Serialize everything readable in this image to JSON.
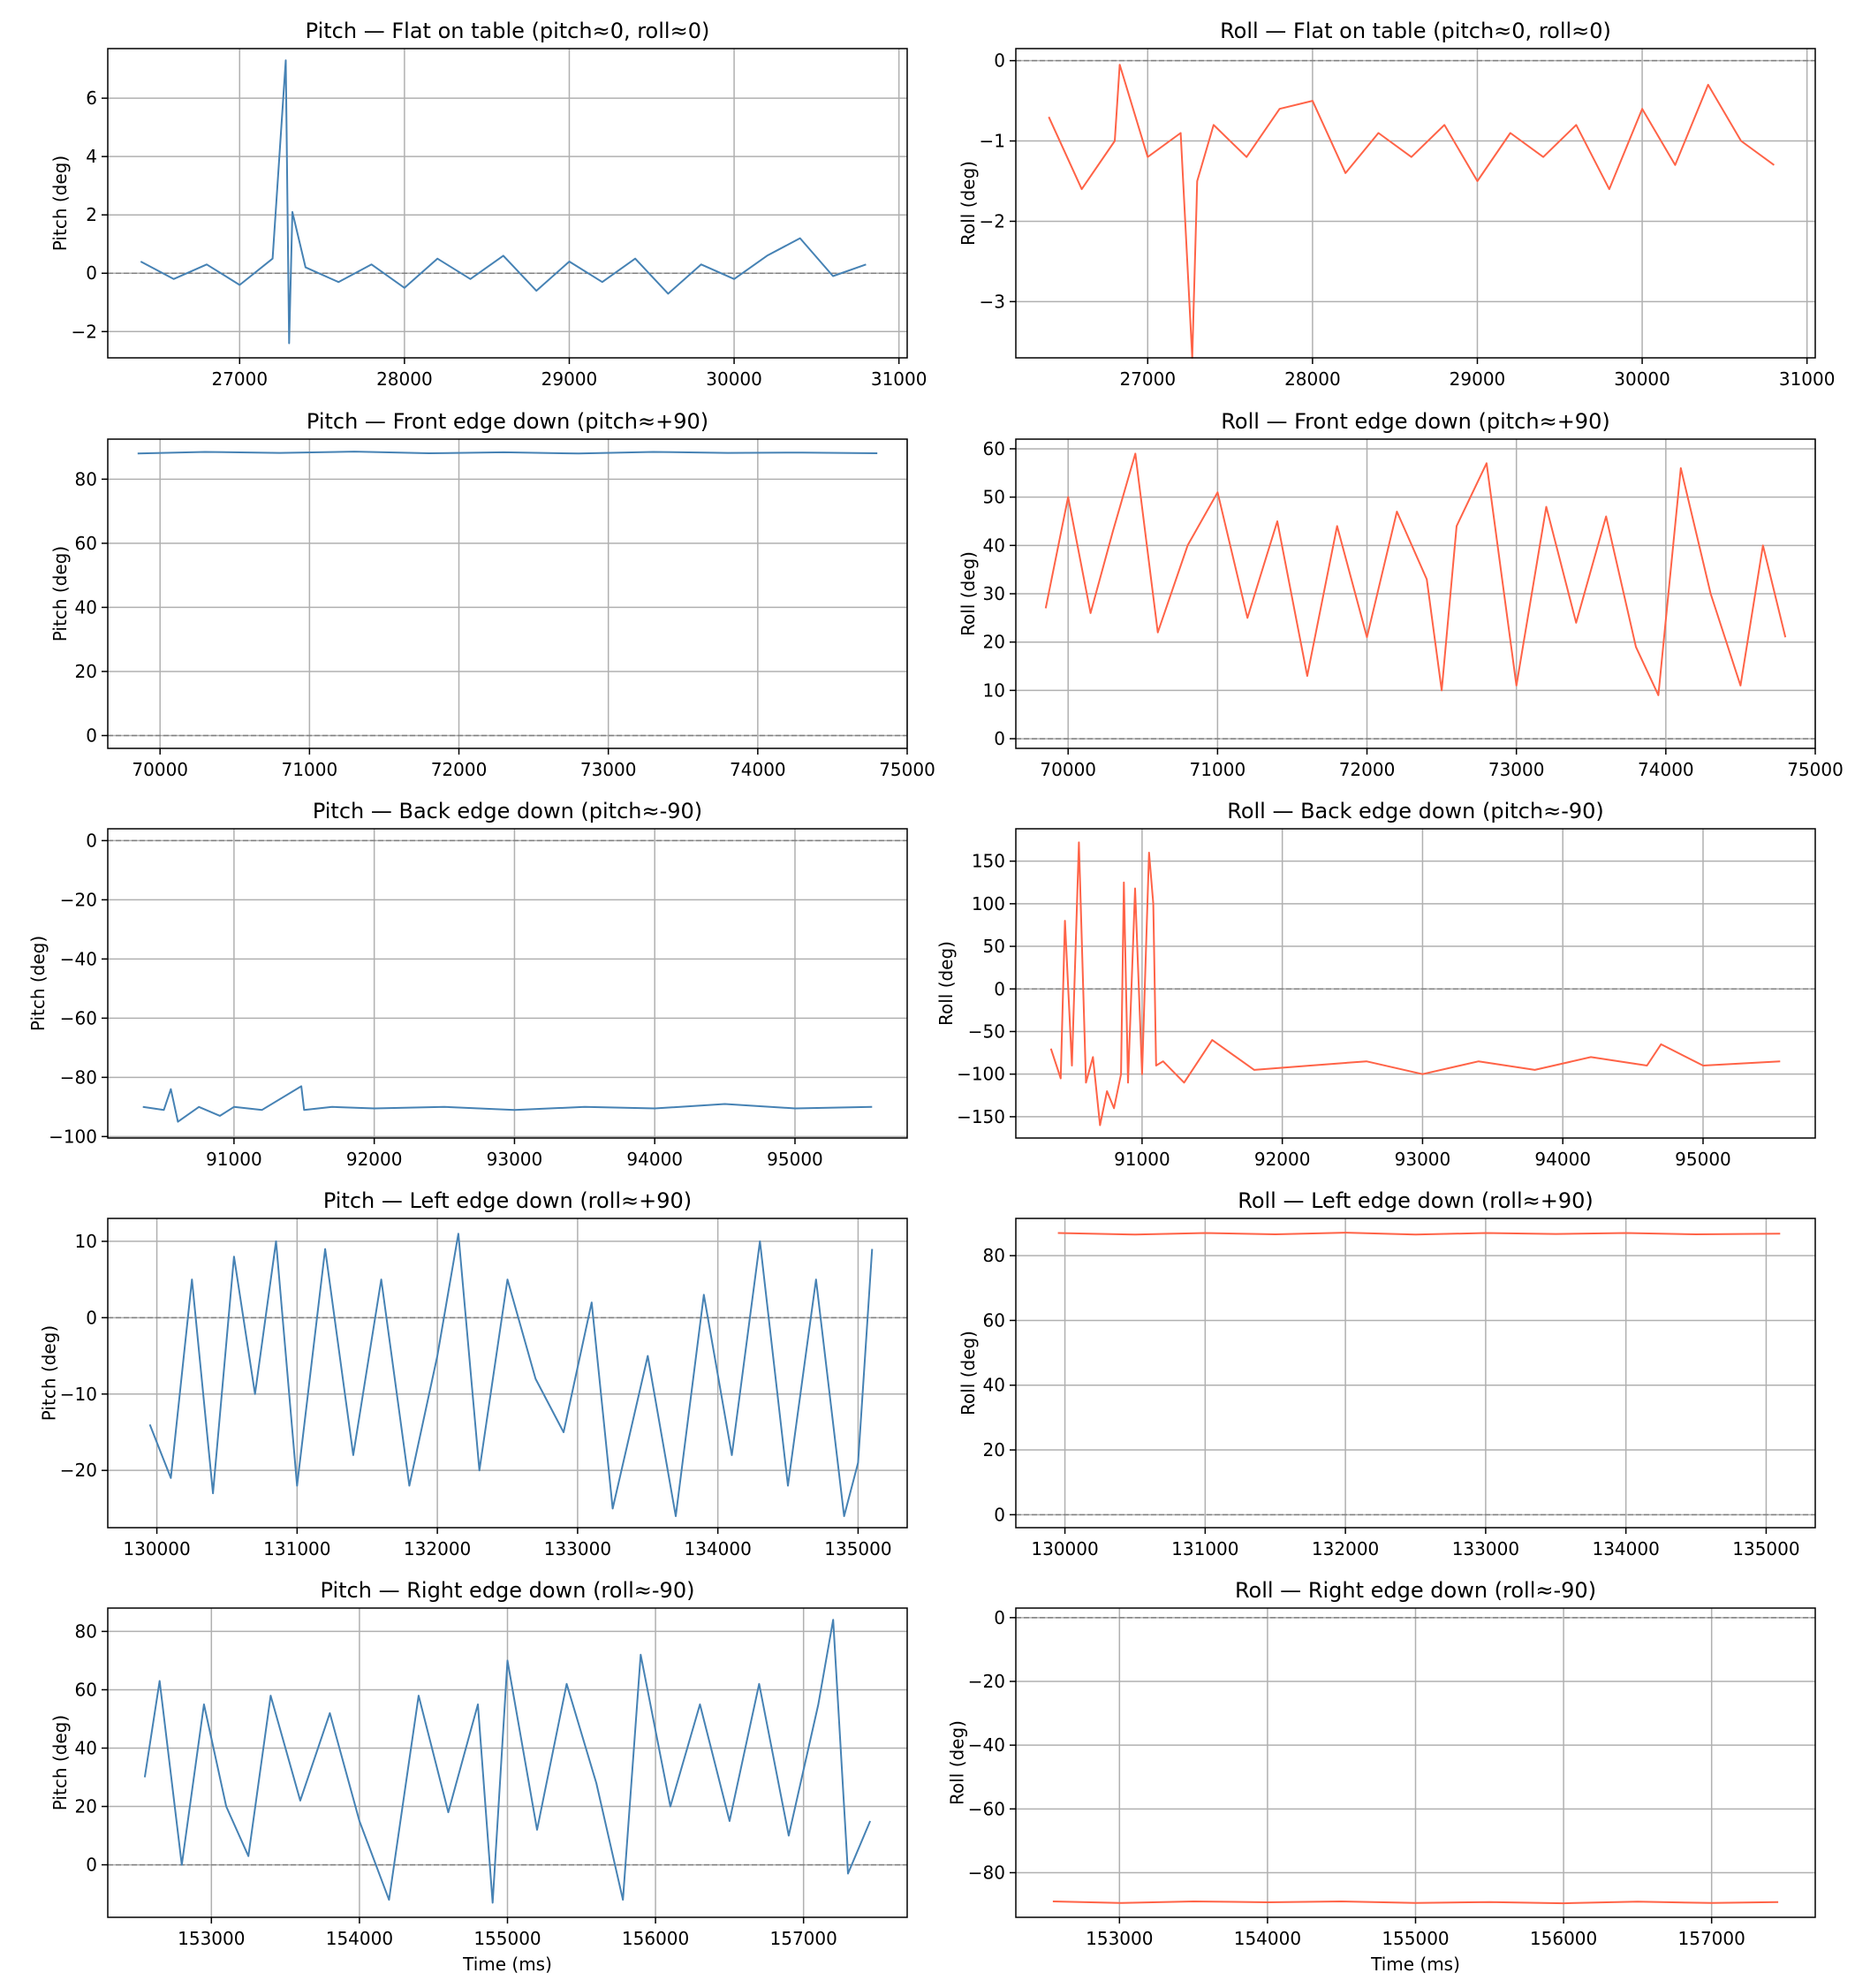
{
  "colors": {
    "pitch": "#4682b4",
    "roll": "#ff6347",
    "grid": "#b0b0b0",
    "zero_line": "#808080"
  },
  "chart_data": [
    {
      "type": "line",
      "title": "Pitch — Flat on table (pitch≈0, roll≈0)",
      "xlabel": "",
      "ylabel": "Pitch (deg)",
      "color": "pitch",
      "xlim": [
        26200,
        31050
      ],
      "ylim": [
        -2.9,
        7.7
      ],
      "xticks": [
        27000,
        28000,
        29000,
        30000,
        31000
      ],
      "yticks": [
        -2,
        0,
        2,
        4,
        6
      ],
      "grid": true,
      "zero_line": true,
      "x": [
        26400,
        26600,
        26800,
        27000,
        27200,
        27280,
        27300,
        27320,
        27400,
        27600,
        27800,
        28000,
        28200,
        28400,
        28600,
        28800,
        29000,
        29200,
        29400,
        29600,
        29800,
        30000,
        30200,
        30400,
        30600,
        30800
      ],
      "y": [
        0.4,
        -0.2,
        0.3,
        -0.4,
        0.5,
        7.3,
        -2.4,
        2.1,
        0.2,
        -0.3,
        0.3,
        -0.5,
        0.5,
        -0.2,
        0.6,
        -0.6,
        0.4,
        -0.3,
        0.5,
        -0.7,
        0.3,
        -0.2,
        0.6,
        1.2,
        -0.1,
        0.3
      ]
    },
    {
      "type": "line",
      "title": "Roll — Flat on table (pitch≈0, roll≈0)",
      "xlabel": "",
      "ylabel": "Roll (deg)",
      "color": "roll",
      "xlim": [
        26200,
        31050
      ],
      "ylim": [
        -3.7,
        0.15
      ],
      "xticks": [
        27000,
        28000,
        29000,
        30000,
        31000
      ],
      "yticks": [
        -3,
        -2,
        -1,
        0
      ],
      "grid": true,
      "zero_line": true,
      "x": [
        26400,
        26600,
        26800,
        26830,
        27000,
        27200,
        27270,
        27300,
        27400,
        27600,
        27800,
        28000,
        28200,
        28400,
        28600,
        28800,
        29000,
        29200,
        29400,
        29600,
        29800,
        30000,
        30200,
        30400,
        30600,
        30800
      ],
      "y": [
        -0.7,
        -1.6,
        -1.0,
        -0.05,
        -1.2,
        -0.9,
        -3.7,
        -1.5,
        -0.8,
        -1.2,
        -0.6,
        -0.5,
        -1.4,
        -0.9,
        -1.2,
        -0.8,
        -1.5,
        -0.9,
        -1.2,
        -0.8,
        -1.6,
        -0.6,
        -1.3,
        -0.3,
        -1.0,
        -1.3
      ]
    },
    {
      "type": "line",
      "title": "Pitch — Front edge down (pitch≈+90)",
      "xlabel": "",
      "ylabel": "Pitch (deg)",
      "color": "pitch",
      "xlim": [
        69650,
        75000
      ],
      "ylim": [
        -4,
        92.5
      ],
      "xticks": [
        70000,
        71000,
        72000,
        73000,
        74000,
        75000
      ],
      "yticks": [
        0,
        20,
        40,
        60,
        80
      ],
      "grid": true,
      "zero_line": true,
      "x": [
        69850,
        70300,
        70800,
        71300,
        71800,
        72300,
        72800,
        73300,
        73800,
        74300,
        74800
      ],
      "y": [
        88,
        88.5,
        88.2,
        88.6,
        88.1,
        88.4,
        88,
        88.5,
        88.2,
        88.3,
        88.1
      ]
    },
    {
      "type": "line",
      "title": "Roll — Front edge down (pitch≈+90)",
      "xlabel": "",
      "ylabel": "Roll (deg)",
      "color": "roll",
      "xlim": [
        69650,
        75000
      ],
      "ylim": [
        -2,
        62
      ],
      "xticks": [
        70000,
        71000,
        72000,
        73000,
        74000,
        75000
      ],
      "yticks": [
        0,
        10,
        20,
        30,
        40,
        50,
        60
      ],
      "grid": true,
      "zero_line": true,
      "x": [
        69850,
        70000,
        70150,
        70300,
        70450,
        70600,
        70800,
        71000,
        71200,
        71400,
        71600,
        71800,
        72000,
        72200,
        72400,
        72500,
        72600,
        72800,
        73000,
        73200,
        73400,
        73600,
        73800,
        73950,
        74100,
        74300,
        74500,
        74650,
        74800
      ],
      "y": [
        27,
        50,
        26,
        43,
        59,
        22,
        40,
        51,
        25,
        45,
        13,
        44,
        21,
        47,
        33,
        10,
        44,
        57,
        11,
        48,
        24,
        46,
        19,
        9,
        56,
        30,
        11,
        40,
        21
      ]
    },
    {
      "type": "line",
      "title": "Pitch — Back edge down (pitch≈-90)",
      "xlabel": "",
      "ylabel": "Pitch (deg)",
      "color": "pitch",
      "xlim": [
        90100,
        95800
      ],
      "ylim": [
        -100.5,
        4
      ],
      "xticks": [
        91000,
        92000,
        93000,
        94000,
        95000
      ],
      "yticks": [
        -100,
        -80,
        -60,
        -40,
        -20,
        0
      ],
      "grid": true,
      "zero_line": true,
      "x": [
        90350,
        90500,
        90550,
        90600,
        90750,
        90900,
        91000,
        91200,
        91480,
        91500,
        91700,
        92000,
        92500,
        93000,
        93500,
        94000,
        94500,
        95000,
        95550
      ],
      "y": [
        -90,
        -91,
        -84,
        -95,
        -90,
        -93,
        -90,
        -91,
        -83,
        -91,
        -90,
        -90.5,
        -90,
        -91,
        -90,
        -90.5,
        -89,
        -90.5,
        -90
      ]
    },
    {
      "type": "line",
      "title": "Roll — Back edge down (pitch≈-90)",
      "xlabel": "",
      "ylabel": "Roll (deg)",
      "color": "roll",
      "xlim": [
        90100,
        95800
      ],
      "ylim": [
        -175,
        188
      ],
      "xticks": [
        91000,
        92000,
        93000,
        94000,
        95000
      ],
      "yticks": [
        -150,
        -100,
        -50,
        0,
        50,
        100,
        150
      ],
      "grid": true,
      "zero_line": true,
      "x": [
        90350,
        90420,
        90450,
        90500,
        90550,
        90600,
        90650,
        90700,
        90750,
        90800,
        90850,
        90870,
        90900,
        90950,
        91000,
        91050,
        91080,
        91100,
        91150,
        91300,
        91500,
        91800,
        92200,
        92600,
        93000,
        93400,
        93800,
        94200,
        94600,
        94700,
        95000,
        95550
      ],
      "y": [
        -70,
        -105,
        80,
        -90,
        172,
        -110,
        -80,
        -160,
        -120,
        -140,
        -100,
        125,
        -110,
        118,
        -100,
        160,
        100,
        -90,
        -85,
        -110,
        -60,
        -95,
        -90,
        -85,
        -100,
        -85,
        -95,
        -80,
        -90,
        -65,
        -90,
        -85
      ]
    },
    {
      "type": "line",
      "title": "Pitch — Left edge down (roll≈+90)",
      "xlabel": "",
      "ylabel": "Pitch (deg)",
      "color": "pitch",
      "xlim": [
        129650,
        135350
      ],
      "ylim": [
        -27.5,
        13
      ],
      "xticks": [
        130000,
        131000,
        132000,
        133000,
        134000,
        135000
      ],
      "yticks": [
        -20,
        -10,
        0,
        10
      ],
      "grid": true,
      "zero_line": true,
      "x": [
        129950,
        130100,
        130250,
        130400,
        130550,
        130700,
        130850,
        131000,
        131200,
        131400,
        131600,
        131800,
        132000,
        132150,
        132300,
        132500,
        132700,
        132900,
        133100,
        133250,
        133500,
        133700,
        133900,
        134100,
        134300,
        134500,
        134700,
        134900,
        135000,
        135100
      ],
      "y": [
        -14,
        -21,
        5,
        -23,
        8,
        -10,
        10,
        -22,
        9,
        -18,
        5,
        -22,
        -5,
        11,
        -20,
        5,
        -8,
        -15,
        2,
        -25,
        -5,
        -26,
        3,
        -18,
        10,
        -22,
        5,
        -26,
        -19,
        9
      ]
    },
    {
      "type": "line",
      "title": "Roll — Left edge down (roll≈+90)",
      "xlabel": "",
      "ylabel": "Roll (deg)",
      "color": "roll",
      "xlim": [
        129650,
        135350
      ],
      "ylim": [
        -4,
        91.5
      ],
      "xticks": [
        130000,
        131000,
        132000,
        133000,
        134000,
        135000
      ],
      "yticks": [
        0,
        20,
        40,
        60,
        80
      ],
      "grid": true,
      "zero_line": true,
      "x": [
        129950,
        130500,
        131000,
        131500,
        132000,
        132500,
        133000,
        133500,
        134000,
        134500,
        135100
      ],
      "y": [
        87,
        86.5,
        87,
        86.6,
        87.1,
        86.5,
        87,
        86.7,
        87,
        86.6,
        86.8
      ]
    },
    {
      "type": "line",
      "title": "Pitch — Right edge down (roll≈-90)",
      "xlabel": "Time (ms)",
      "ylabel": "Pitch (deg)",
      "color": "pitch",
      "xlim": [
        152300,
        157700
      ],
      "ylim": [
        -18,
        88
      ],
      "xticks": [
        153000,
        154000,
        155000,
        156000,
        157000
      ],
      "yticks": [
        0,
        20,
        40,
        60,
        80
      ],
      "grid": true,
      "zero_line": true,
      "x": [
        152550,
        152650,
        152800,
        152950,
        153100,
        153250,
        153400,
        153600,
        153800,
        154000,
        154200,
        154400,
        154600,
        154800,
        154900,
        155000,
        155200,
        155400,
        155600,
        155780,
        155900,
        156100,
        156300,
        156500,
        156700,
        156900,
        157100,
        157200,
        157300,
        157450
      ],
      "y": [
        30,
        63,
        0,
        55,
        20,
        3,
        58,
        22,
        52,
        15,
        -12,
        58,
        18,
        55,
        -13,
        70,
        12,
        62,
        28,
        -12,
        72,
        20,
        55,
        15,
        62,
        10,
        55,
        84,
        -3,
        15
      ]
    },
    {
      "type": "line",
      "title": "Roll — Right edge down (roll≈-90)",
      "xlabel": "Time (ms)",
      "ylabel": "Roll (deg)",
      "color": "roll",
      "xlim": [
        152300,
        157700
      ],
      "ylim": [
        -94,
        3
      ],
      "xticks": [
        153000,
        154000,
        155000,
        156000,
        157000
      ],
      "yticks": [
        -80,
        -60,
        -40,
        -20,
        0
      ],
      "grid": true,
      "zero_line": true,
      "x": [
        152550,
        153000,
        153500,
        154000,
        154500,
        155000,
        155500,
        156000,
        156500,
        157000,
        157450
      ],
      "y": [
        -89,
        -89.5,
        -89,
        -89.3,
        -89,
        -89.5,
        -89.2,
        -89.6,
        -89.1,
        -89.5,
        -89.2
      ]
    }
  ]
}
